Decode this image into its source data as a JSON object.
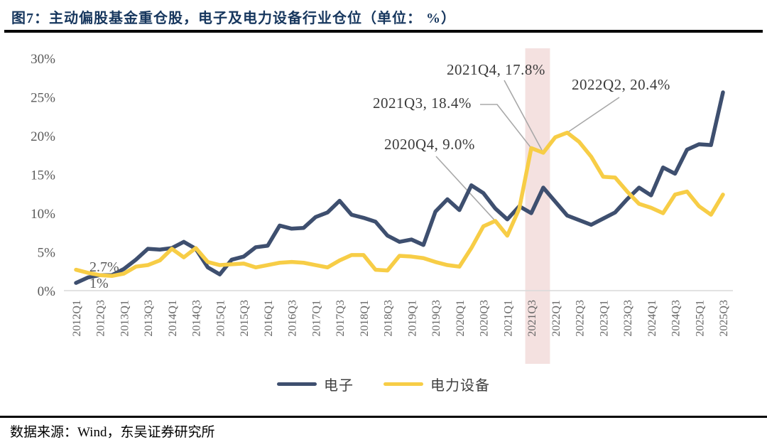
{
  "header": {
    "title": "图7：主动偏股基金重仓股，电子及电力设备行业仓位（单位： %）"
  },
  "footer": {
    "source": "数据来源：Wind，东吴证券研究所"
  },
  "colors": {
    "electronics_line": "#3E4F6F",
    "power_equipment_line": "#F7CD46",
    "highlight_band": "#F4E1E0",
    "title_text": "#17375E",
    "tick_text": "#595959",
    "annotation_text": "#3B3B3B",
    "leader_line": "#A8A8A8",
    "axis_line": "#D9D9D9"
  },
  "chart_data": {
    "type": "line",
    "title": "主动偏股基金重仓股，电子及电力设备行业仓位",
    "unit": "%",
    "ylim": [
      0,
      30
    ],
    "yticks": [
      "0%",
      "5%",
      "10%",
      "15%",
      "20%",
      "25%",
      "30%"
    ],
    "grid": false,
    "legend_position": "bottom",
    "x": [
      "2012Q1",
      "2012Q2",
      "2012Q3",
      "2012Q4",
      "2013Q1",
      "2013Q2",
      "2013Q3",
      "2013Q4",
      "2014Q1",
      "2014Q2",
      "2014Q3",
      "2014Q4",
      "2015Q1",
      "2015Q2",
      "2015Q3",
      "2015Q4",
      "2016Q1",
      "2016Q2",
      "2016Q3",
      "2016Q4",
      "2017Q1",
      "2017Q2",
      "2017Q3",
      "2017Q4",
      "2018Q1",
      "2018Q2",
      "2018Q3",
      "2018Q4",
      "2019Q1",
      "2019Q2",
      "2019Q3",
      "2019Q4",
      "2020Q1",
      "2020Q2",
      "2020Q3",
      "2020Q4",
      "2021Q1",
      "2021Q2",
      "2021Q3",
      "2021Q4",
      "2022Q1",
      "2022Q2",
      "2022Q3",
      "2022Q4",
      "2023Q1",
      "2023Q2",
      "2023Q3",
      "2023Q4",
      "2024Q1",
      "2024Q2",
      "2024Q3",
      "2024Q4",
      "2025Q1",
      "2025Q2",
      "2025Q3"
    ],
    "x_tick_labels": [
      "2012Q1",
      "2012Q3",
      "2013Q1",
      "2013Q3",
      "2014Q1",
      "2014Q3",
      "2015Q1",
      "2015Q3",
      "2016Q1",
      "2016Q3",
      "2017Q1",
      "2017Q3",
      "2018Q1",
      "2018Q3",
      "2019Q1",
      "2019Q3",
      "2020Q1",
      "2020Q3",
      "2021Q1",
      "2021Q3",
      "2022Q1",
      "2022Q3",
      "2023Q1",
      "2023Q3",
      "2024Q1",
      "2024Q3",
      "2025Q1",
      "2025Q3"
    ],
    "series": [
      {
        "name": "电子",
        "color": "#3E4F6F",
        "values": [
          1.0,
          1.7,
          2.0,
          2.0,
          2.8,
          4.0,
          5.4,
          5.3,
          5.5,
          6.3,
          5.4,
          3.0,
          2.1,
          4.0,
          4.4,
          5.6,
          5.8,
          8.4,
          8.0,
          8.1,
          9.5,
          10.1,
          11.6,
          9.8,
          9.4,
          8.9,
          7.1,
          6.3,
          6.6,
          5.9,
          10.2,
          11.8,
          10.4,
          13.6,
          12.6,
          10.6,
          9.2,
          10.9,
          10.0,
          13.3,
          11.5,
          9.7,
          9.1,
          8.5,
          9.3,
          10.1,
          11.8,
          13.3,
          12.3,
          15.9,
          15.1,
          18.2,
          18.9,
          18.8,
          25.6
        ]
      },
      {
        "name": "电力设备",
        "color": "#F7CD46",
        "values": [
          2.7,
          2.3,
          2.0,
          1.9,
          2.2,
          3.1,
          3.3,
          3.9,
          5.4,
          4.3,
          5.5,
          3.7,
          3.3,
          3.4,
          3.5,
          3.0,
          3.3,
          3.6,
          3.7,
          3.6,
          3.3,
          3.0,
          3.9,
          4.6,
          4.6,
          2.7,
          2.6,
          4.5,
          4.4,
          4.2,
          3.7,
          3.3,
          3.1,
          5.5,
          8.3,
          9.0,
          7.1,
          10.6,
          18.4,
          17.8,
          19.8,
          20.4,
          19.2,
          17.3,
          14.7,
          14.6,
          12.8,
          11.2,
          10.7,
          10.0,
          12.4,
          12.8,
          10.9,
          9.8,
          12.4
        ]
      }
    ],
    "highlight_band": {
      "from": "2021Q3",
      "to": "2021Q4",
      "color": "#F4E1E0"
    },
    "annotations": [
      {
        "text": "2020Q4, 9.0%",
        "series": "电力设备",
        "x": "2020Q4",
        "value": 9.0
      },
      {
        "text": "2021Q3, 18.4%",
        "series": "电力设备",
        "x": "2021Q3",
        "value": 18.4
      },
      {
        "text": "2021Q4, 17.8%",
        "series": "电力设备",
        "x": "2021Q4",
        "value": 17.8
      },
      {
        "text": "2022Q2, 20.4%",
        "series": "电力设备",
        "x": "2022Q2",
        "value": 20.4
      }
    ],
    "point_labels": [
      {
        "text": "2.7%",
        "series": "电力设备",
        "x": "2012Q1"
      },
      {
        "text": "1%",
        "series": "电子",
        "x": "2012Q1"
      }
    ]
  }
}
